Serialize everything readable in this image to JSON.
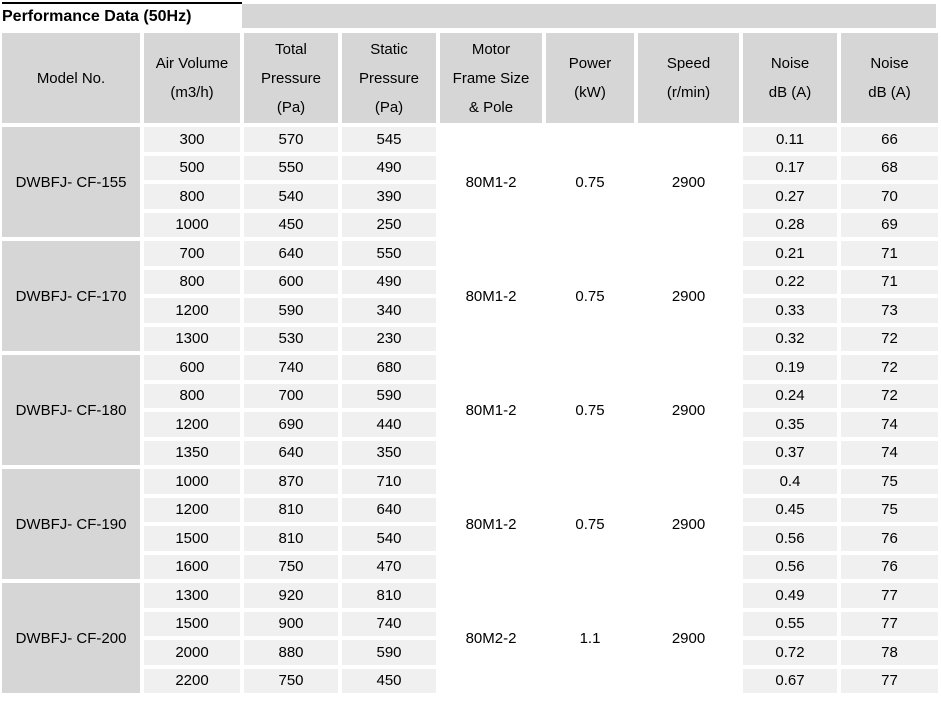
{
  "title": "Performance Data (50Hz)",
  "colors": {
    "header_bg": "#d6d6d6",
    "model_bg": "#d6d6d6",
    "value_cell_bg": "#f0f0f0",
    "merged_cell_bg": "#ffffff",
    "text": "#000000",
    "title_border": "#000000"
  },
  "table": {
    "headers": [
      {
        "id": "model-no",
        "lines": [
          "Model No."
        ]
      },
      {
        "id": "air-volume",
        "lines": [
          "Air Volume",
          "(m3/h)"
        ]
      },
      {
        "id": "total-pressure",
        "lines": [
          "Total",
          "Pressure",
          "(Pa)"
        ]
      },
      {
        "id": "static-pressure",
        "lines": [
          "Static",
          "Pressure",
          "(Pa)"
        ]
      },
      {
        "id": "motor-frame",
        "lines": [
          "Motor",
          "Frame Size",
          "& Pole"
        ]
      },
      {
        "id": "power",
        "lines": [
          "Power",
          "(kW)"
        ]
      },
      {
        "id": "speed",
        "lines": [
          "Speed",
          "(r/min)"
        ]
      },
      {
        "id": "noise-1",
        "lines": [
          "Noise",
          "dB (A)"
        ]
      },
      {
        "id": "noise-2",
        "lines": [
          "Noise",
          "dB (A)"
        ]
      }
    ],
    "groups": [
      {
        "model": "DWBFJ- CF-155",
        "motor_frame": "80M1-2",
        "power": "0.75",
        "speed": "2900",
        "rows": [
          {
            "air_volume": "300",
            "total_pressure": "570",
            "static_pressure": "545",
            "noise_db_1": "0.11",
            "noise_db_2": "66"
          },
          {
            "air_volume": "500",
            "total_pressure": "550",
            "static_pressure": "490",
            "noise_db_1": "0.17",
            "noise_db_2": "68"
          },
          {
            "air_volume": "800",
            "total_pressure": "540",
            "static_pressure": "390",
            "noise_db_1": "0.27",
            "noise_db_2": "70"
          },
          {
            "air_volume": "1000",
            "total_pressure": "450",
            "static_pressure": "250",
            "noise_db_1": "0.28",
            "noise_db_2": "69"
          }
        ]
      },
      {
        "model": "DWBFJ- CF-170",
        "motor_frame": "80M1-2",
        "power": "0.75",
        "speed": "2900",
        "rows": [
          {
            "air_volume": "700",
            "total_pressure": "640",
            "static_pressure": "550",
            "noise_db_1": "0.21",
            "noise_db_2": "71"
          },
          {
            "air_volume": "800",
            "total_pressure": "600",
            "static_pressure": "490",
            "noise_db_1": "0.22",
            "noise_db_2": "71"
          },
          {
            "air_volume": "1200",
            "total_pressure": "590",
            "static_pressure": "340",
            "noise_db_1": "0.33",
            "noise_db_2": "73"
          },
          {
            "air_volume": "1300",
            "total_pressure": "530",
            "static_pressure": "230",
            "noise_db_1": "0.32",
            "noise_db_2": "72"
          }
        ]
      },
      {
        "model": "DWBFJ- CF-180",
        "motor_frame": "80M1-2",
        "power": "0.75",
        "speed": "2900",
        "rows": [
          {
            "air_volume": "600",
            "total_pressure": "740",
            "static_pressure": "680",
            "noise_db_1": "0.19",
            "noise_db_2": "72"
          },
          {
            "air_volume": "800",
            "total_pressure": "700",
            "static_pressure": "590",
            "noise_db_1": "0.24",
            "noise_db_2": "72"
          },
          {
            "air_volume": "1200",
            "total_pressure": "690",
            "static_pressure": "440",
            "noise_db_1": "0.35",
            "noise_db_2": "74"
          },
          {
            "air_volume": "1350",
            "total_pressure": "640",
            "static_pressure": "350",
            "noise_db_1": "0.37",
            "noise_db_2": "74"
          }
        ]
      },
      {
        "model": "DWBFJ- CF-190",
        "motor_frame": "80M1-2",
        "power": "0.75",
        "speed": "2900",
        "rows": [
          {
            "air_volume": "1000",
            "total_pressure": "870",
            "static_pressure": "710",
            "noise_db_1": "0.4",
            "noise_db_2": "75"
          },
          {
            "air_volume": "1200",
            "total_pressure": "810",
            "static_pressure": "640",
            "noise_db_1": "0.45",
            "noise_db_2": "75"
          },
          {
            "air_volume": "1500",
            "total_pressure": "810",
            "static_pressure": "540",
            "noise_db_1": "0.56",
            "noise_db_2": "76"
          },
          {
            "air_volume": "1600",
            "total_pressure": "750",
            "static_pressure": "470",
            "noise_db_1": "0.56",
            "noise_db_2": "76"
          }
        ]
      },
      {
        "model": "DWBFJ- CF-200",
        "motor_frame": "80M2-2",
        "power": "1.1",
        "speed": "2900",
        "rows": [
          {
            "air_volume": "1300",
            "total_pressure": "920",
            "static_pressure": "810",
            "noise_db_1": "0.49",
            "noise_db_2": "77"
          },
          {
            "air_volume": "1500",
            "total_pressure": "900",
            "static_pressure": "740",
            "noise_db_1": "0.55",
            "noise_db_2": "77"
          },
          {
            "air_volume": "2000",
            "total_pressure": "880",
            "static_pressure": "590",
            "noise_db_1": "0.72",
            "noise_db_2": "78"
          },
          {
            "air_volume": "2200",
            "total_pressure": "750",
            "static_pressure": "450",
            "noise_db_1": "0.67",
            "noise_db_2": "77"
          }
        ]
      }
    ]
  }
}
